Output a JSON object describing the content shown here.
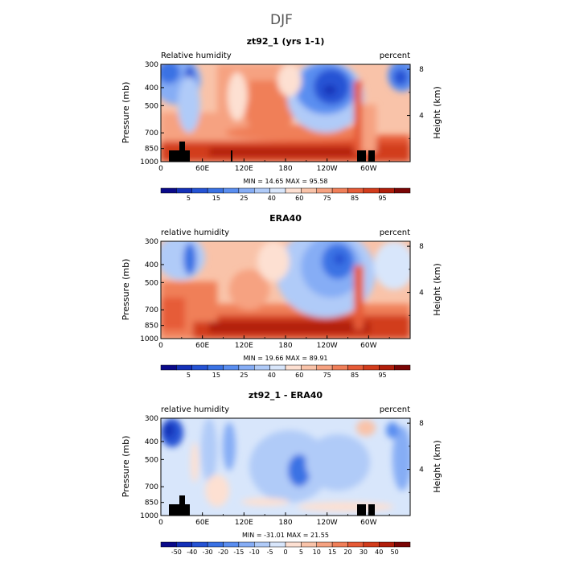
{
  "figure_title": "DJF",
  "panels": [
    {
      "title": "zt92_1 (yrs 1-1)",
      "left_label": "Relative humidity",
      "right_label": "percent",
      "min_max": "MIN =   14.65   MAX =   95.58"
    },
    {
      "title": "ERA40",
      "left_label": "relative humidity",
      "right_label": "percent",
      "min_max": "MIN =   19.66   MAX =   89.91"
    },
    {
      "title": "zt92_1 - ERA40",
      "left_label": "relative humidity",
      "right_label": "percent",
      "min_max": "MIN =  -31.01   MAX =   21.55"
    }
  ],
  "axes": {
    "ylabel": "Pressure  (mb)",
    "y2label": "Height  (km)"
  },
  "colors": {
    "blue_deep": "#08088c",
    "blue_mid": "#2f62d6",
    "blue_light": "#a7c4f0",
    "white": "#ffffff",
    "red_light": "#f7b9a0",
    "red_mid": "#e8572f",
    "red_deep": "#7a0505"
  },
  "chart_data": [
    {
      "type": "heatmap",
      "title": "zt92_1 (yrs 1-1)",
      "ylabel": "Pressure  (mb)",
      "y2label": "Height  (km)",
      "x_ticks": [
        "0",
        "60E",
        "120E",
        "180",
        "120W",
        "60W"
      ],
      "x_tick_lon": [
        0,
        60,
        120,
        180,
        240,
        300
      ],
      "xlim": [
        0,
        360
      ],
      "y_ticks": [
        "300",
        "400",
        "500",
        "700",
        "850",
        "1000"
      ],
      "y_tick_p": [
        300,
        400,
        500,
        700,
        850,
        1000
      ],
      "ylim": [
        1000,
        300
      ],
      "y2_ticks": [
        "8",
        "4"
      ],
      "y2_tick_km": [
        8,
        4
      ],
      "min": 14.65,
      "max": 95.58,
      "colorbar_labels": [
        "5",
        "15",
        "25",
        "40",
        "60",
        "75",
        "85",
        "95"
      ],
      "colorbar_levels": 16,
      "colorbar_palette": [
        "#0a0a8a",
        "#1431b8",
        "#2553d4",
        "#3a72e4",
        "#5a8ef0",
        "#86adf5",
        "#b0cbf8",
        "#d8e6fb",
        "#fde0d2",
        "#f9c3a9",
        "#f6a281",
        "#f07f59",
        "#e65b37",
        "#d23c1c",
        "#b11e0b",
        "#7a0505"
      ]
    },
    {
      "type": "heatmap",
      "title": "ERA40",
      "ylabel": "Pressure  (mb)",
      "y2label": "Height  (km)",
      "x_ticks": [
        "0",
        "60E",
        "120E",
        "180",
        "120W",
        "60W"
      ],
      "x_tick_lon": [
        0,
        60,
        120,
        180,
        240,
        300
      ],
      "xlim": [
        0,
        360
      ],
      "y_ticks": [
        "300",
        "400",
        "500",
        "700",
        "850",
        "1000"
      ],
      "y_tick_p": [
        300,
        400,
        500,
        700,
        850,
        1000
      ],
      "ylim": [
        1000,
        300
      ],
      "y2_ticks": [
        "8",
        "4"
      ],
      "y2_tick_km": [
        8,
        4
      ],
      "min": 19.66,
      "max": 89.91,
      "colorbar_labels": [
        "5",
        "15",
        "25",
        "40",
        "60",
        "75",
        "85",
        "95"
      ],
      "colorbar_levels": 16,
      "colorbar_palette": [
        "#0a0a8a",
        "#1431b8",
        "#2553d4",
        "#3a72e4",
        "#5a8ef0",
        "#86adf5",
        "#b0cbf8",
        "#d8e6fb",
        "#fde0d2",
        "#f9c3a9",
        "#f6a281",
        "#f07f59",
        "#e65b37",
        "#d23c1c",
        "#b11e0b",
        "#7a0505"
      ]
    },
    {
      "type": "heatmap",
      "title": "zt92_1 - ERA40",
      "ylabel": "Pressure  (mb)",
      "y2label": "Height  (km)",
      "x_ticks": [
        "0",
        "60E",
        "120E",
        "180",
        "120W",
        "60W"
      ],
      "x_tick_lon": [
        0,
        60,
        120,
        180,
        240,
        300
      ],
      "xlim": [
        0,
        360
      ],
      "y_ticks": [
        "300",
        "400",
        "500",
        "700",
        "850",
        "1000"
      ],
      "y_tick_p": [
        300,
        400,
        500,
        700,
        850,
        1000
      ],
      "ylim": [
        1000,
        300
      ],
      "y2_ticks": [
        "8",
        "4"
      ],
      "y2_tick_km": [
        8,
        4
      ],
      "min": -31.01,
      "max": 21.55,
      "colorbar_labels": [
        "-50",
        "-40",
        "-30",
        "-20",
        "-15",
        "-10",
        "-5",
        "0",
        "5",
        "10",
        "15",
        "20",
        "30",
        "40",
        "50"
      ],
      "colorbar_levels": 16,
      "colorbar_palette": [
        "#0a0a8a",
        "#1431b8",
        "#2553d4",
        "#3a72e4",
        "#5a8ef0",
        "#86adf5",
        "#b0cbf8",
        "#d8e6fb",
        "#fde0d2",
        "#f9c3a9",
        "#f6a281",
        "#f07f59",
        "#e65b37",
        "#d23c1c",
        "#b11e0b",
        "#7a0505"
      ]
    }
  ]
}
